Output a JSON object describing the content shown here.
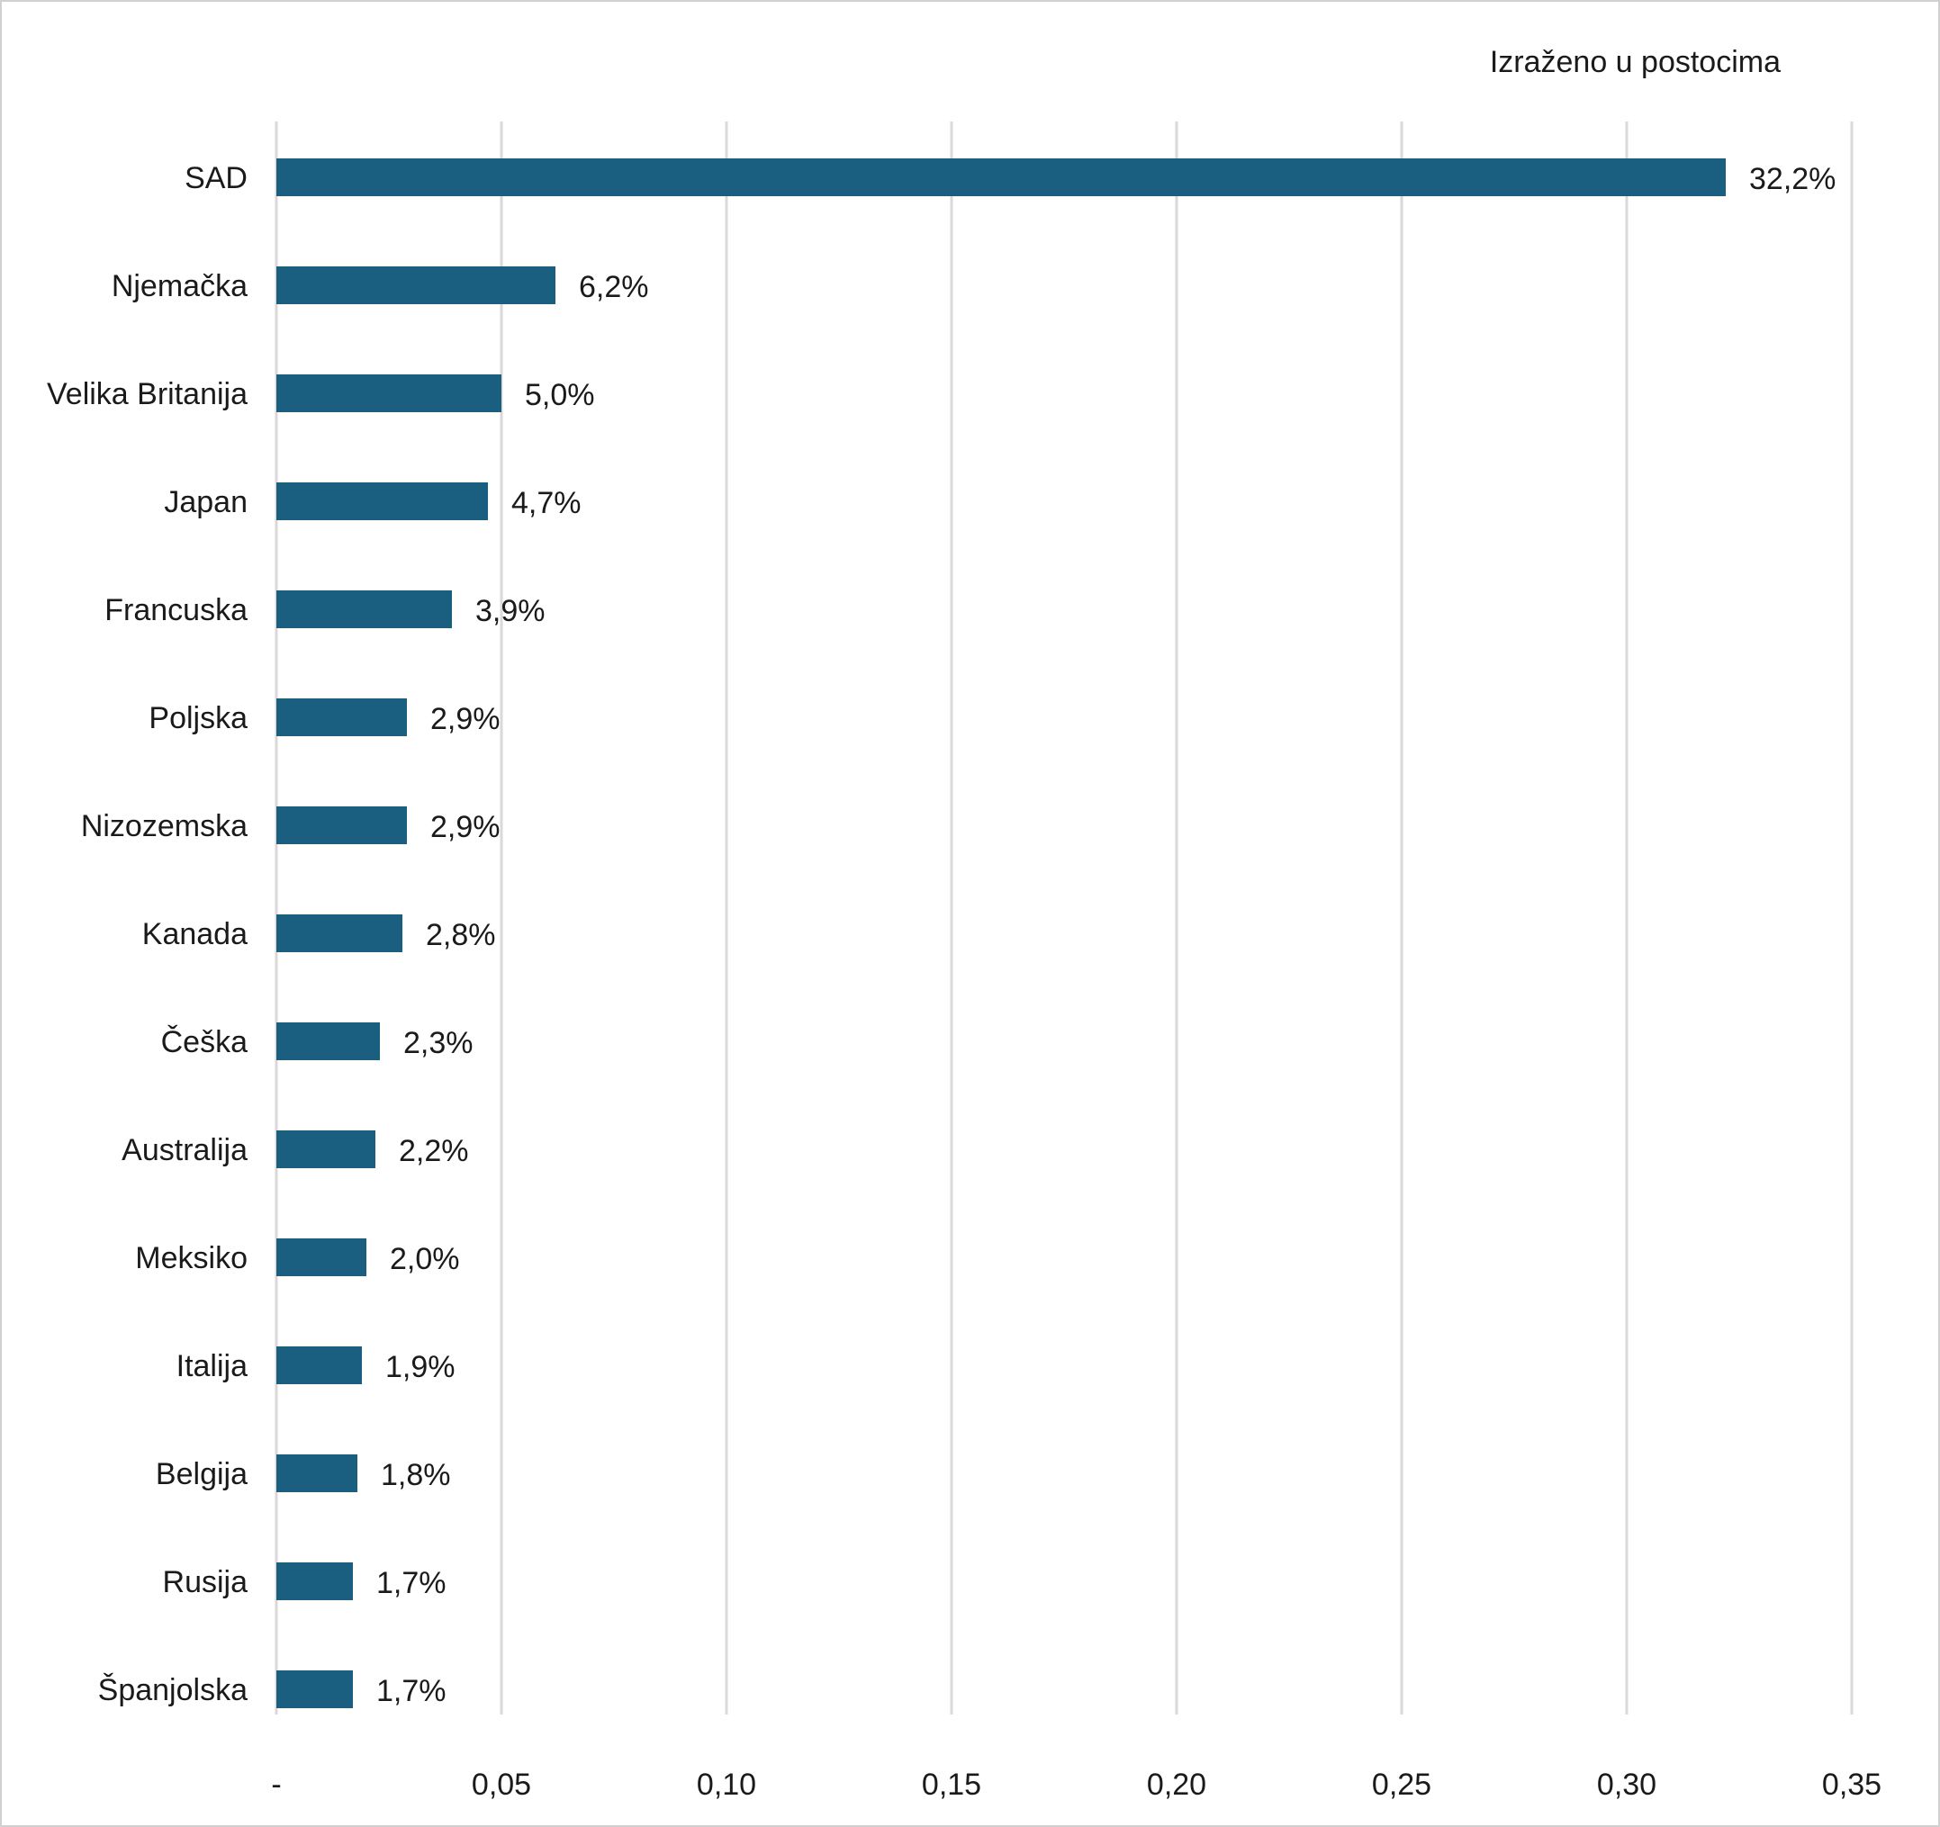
{
  "unit_note": "Izraženo u postocima",
  "chart_data": {
    "type": "bar",
    "orientation": "horizontal",
    "title": "",
    "xlabel": "",
    "ylabel": "",
    "xlim": [
      0,
      0.35
    ],
    "grid": "vertical",
    "bar_color": "#1a5f80",
    "x_ticks": [
      {
        "value": 0,
        "label": "-"
      },
      {
        "value": 0.05,
        "label": "0,05"
      },
      {
        "value": 0.1,
        "label": "0,10"
      },
      {
        "value": 0.15,
        "label": "0,15"
      },
      {
        "value": 0.2,
        "label": "0,20"
      },
      {
        "value": 0.25,
        "label": "0,25"
      },
      {
        "value": 0.3,
        "label": "0,30"
      },
      {
        "value": 0.35,
        "label": "0,35"
      }
    ],
    "categories": [
      "SAD",
      "Njemačka",
      "Velika Britanija",
      "Japan",
      "Francuska",
      "Poljska",
      "Nizozemska",
      "Kanada",
      "Češka",
      "Australija",
      "Meksiko",
      "Italija",
      "Belgija",
      "Rusija",
      "Španjolska"
    ],
    "values": [
      0.322,
      0.062,
      0.05,
      0.047,
      0.039,
      0.029,
      0.029,
      0.028,
      0.023,
      0.022,
      0.02,
      0.019,
      0.018,
      0.017,
      0.017
    ],
    "data_labels": [
      "32,2%",
      "6,2%",
      "5,0%",
      "4,7%",
      "3,9%",
      "2,9%",
      "2,9%",
      "2,8%",
      "2,3%",
      "2,2%",
      "2,0%",
      "1,9%",
      "1,8%",
      "1,7%",
      "1,7%"
    ]
  }
}
